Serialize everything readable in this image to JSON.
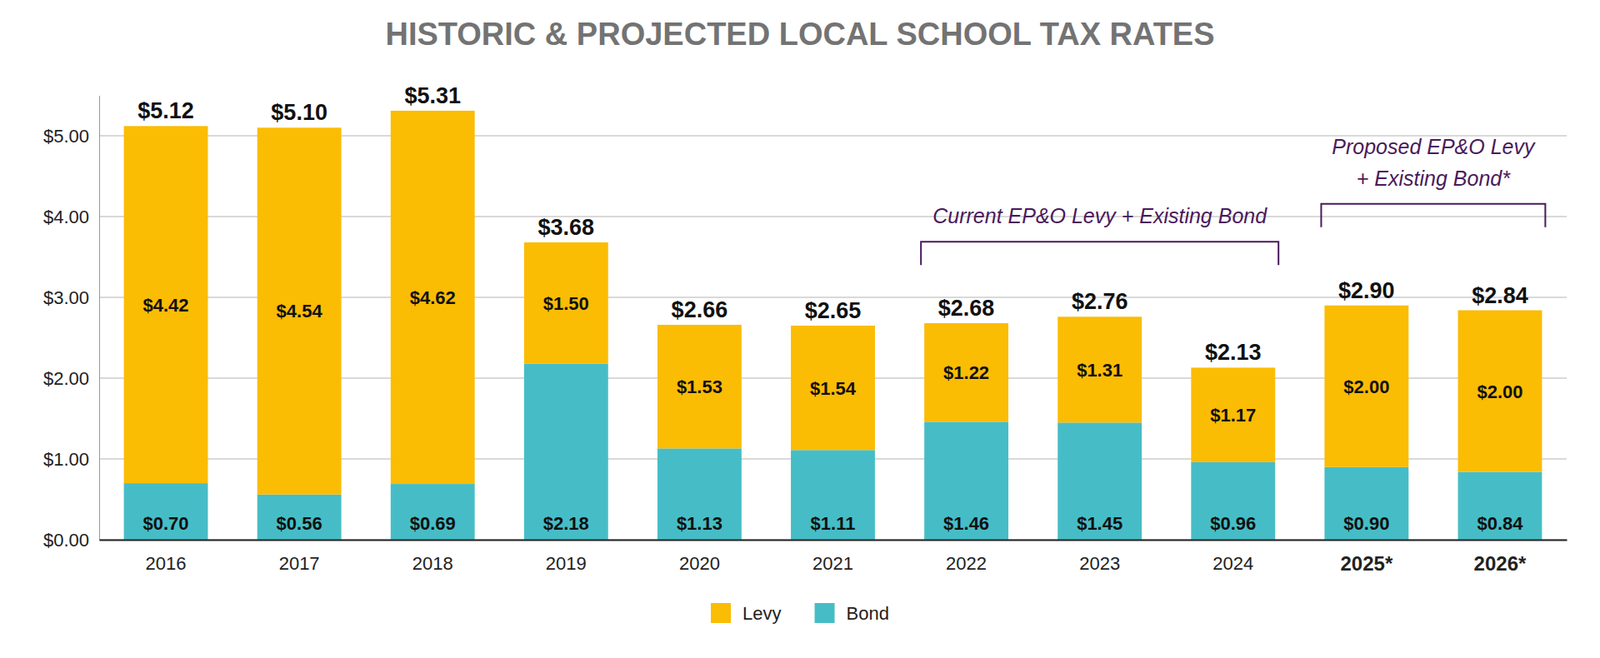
{
  "chart_data": {
    "type": "bar",
    "title": "HISTORIC & PROJECTED LOCAL SCHOOL TAX RATES",
    "categories": [
      "2016",
      "2017",
      "2018",
      "2019",
      "2020",
      "2021",
      "2022",
      "2023",
      "2024",
      "2025*",
      "2026*"
    ],
    "series": [
      {
        "name": "Levy",
        "color": "#FBBC04",
        "values": [
          4.42,
          4.54,
          4.62,
          1.5,
          1.53,
          1.54,
          1.22,
          1.31,
          1.17,
          2.0,
          2.0
        ],
        "value_labels": [
          "$4.42",
          "$4.54",
          "$4.62",
          "$1.50",
          "$1.53",
          "$1.54",
          "$1.22",
          "$1.31",
          "$1.17",
          "$2.00",
          "$2.00"
        ]
      },
      {
        "name": "Bond",
        "color": "#46BDC6",
        "values": [
          0.7,
          0.56,
          0.69,
          2.18,
          1.13,
          1.11,
          1.46,
          1.45,
          0.96,
          0.9,
          0.84
        ],
        "value_labels": [
          "$0.70",
          "$0.56",
          "$0.69",
          "$2.18",
          "$1.13",
          "$1.11",
          "$1.46",
          "$1.45",
          "$0.96",
          "$0.90",
          "$0.84"
        ]
      }
    ],
    "totals": [
      5.12,
      5.1,
      5.31,
      3.68,
      2.66,
      2.65,
      2.68,
      2.76,
      2.13,
      2.9,
      2.84
    ],
    "total_labels": [
      "$5.12",
      "$5.10",
      "$5.31",
      "$3.68",
      "$2.66",
      "$2.65",
      "$2.68",
      "$2.76",
      "$2.13",
      "$2.90",
      "$2.84"
    ],
    "ylim": [
      0,
      5.5
    ],
    "yticks": [
      {
        "value": 0,
        "label": "$0.00"
      },
      {
        "value": 1,
        "label": "$1.00"
      },
      {
        "value": 2,
        "label": "$2.00"
      },
      {
        "value": 3,
        "label": "$3.00"
      },
      {
        "value": 4,
        "label": "$4.00"
      },
      {
        "value": 5,
        "label": "$5.00"
      }
    ],
    "grid": true,
    "stacked": true,
    "data_labels": true,
    "legend": "bottom",
    "annotations": [
      {
        "text": [
          "Current EP&O Levy + Existing Bond"
        ],
        "from": "2022",
        "to": "2024"
      },
      {
        "text": [
          "Proposed EP&O Levy",
          "+ Existing Bond*"
        ],
        "from": "2025*",
        "to": "2026*"
      }
    ]
  }
}
